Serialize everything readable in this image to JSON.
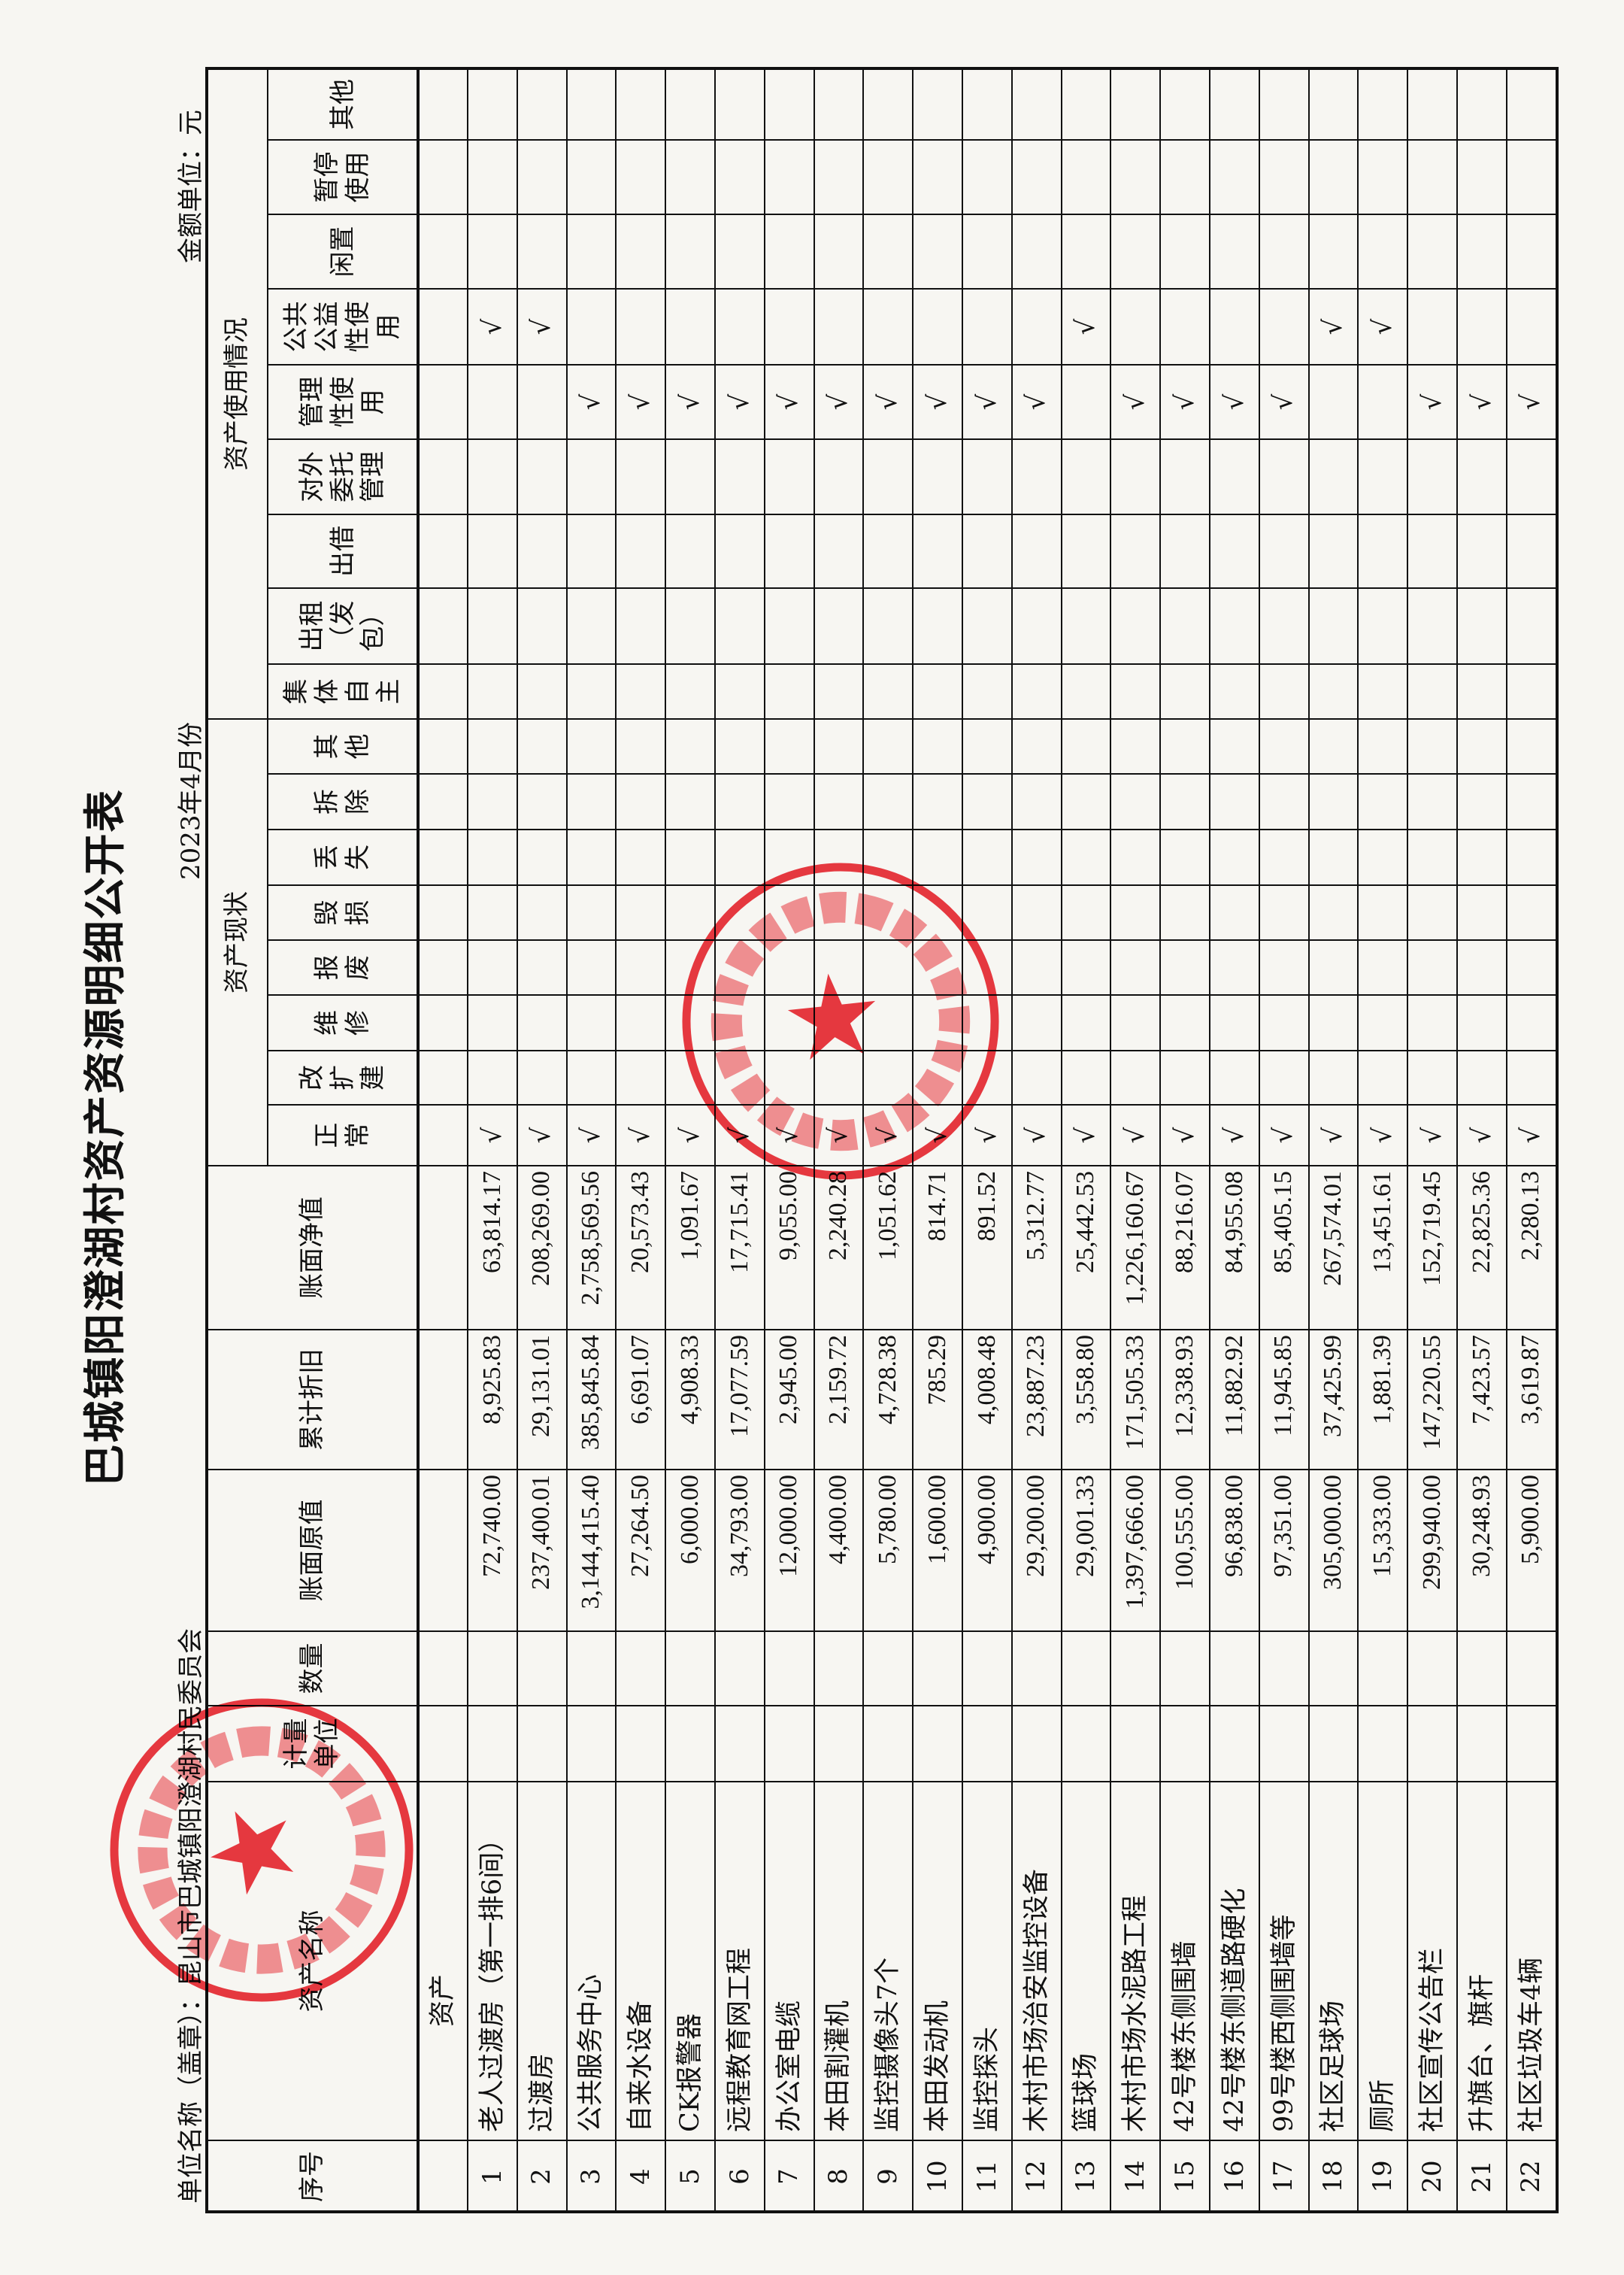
{
  "title": "巴城镇阳澄湖村资产资源明细公开表",
  "period": "2023年4月份",
  "unit_name": "单位名称（盖章）：昆山市巴城镇阳澄湖村民委员会",
  "currency_unit": "金额单位：元",
  "headers": {
    "seq": "序号",
    "name": "资产名称",
    "unit": "计量单位",
    "qty": "数量",
    "original": "账面原值",
    "depreciation": "累计折旧",
    "net": "账面净值",
    "status_group": "资产现状",
    "status": [
      "正常",
      "改扩建",
      "维修",
      "报废",
      "毁损",
      "丢失",
      "拆除",
      "其他"
    ],
    "usage_group": "资产使用情况",
    "usage": [
      "集体自主",
      "出租（发包）",
      "出借",
      "对外委托管理",
      "管理性使用",
      "公共公益性使用",
      "闲置",
      "暂停使用",
      "其他"
    ]
  },
  "category_row": {
    "name": "资产"
  },
  "check_mark": "√",
  "rows": [
    {
      "seq": "1",
      "name": "老人过渡房（第一排6间）",
      "original": "72,740.00",
      "depreciation": "8,925.83",
      "net": "63,814.17",
      "status": "正常",
      "usage": "公共公益性使用"
    },
    {
      "seq": "2",
      "name": "过渡房",
      "original": "237,400.01",
      "depreciation": "29,131.01",
      "net": "208,269.00",
      "status": "正常",
      "usage": "公共公益性使用"
    },
    {
      "seq": "3",
      "name": "公共服务中心",
      "original": "3,144,415.40",
      "depreciation": "385,845.84",
      "net": "2,758,569.56",
      "status": "正常",
      "usage": "管理性使用"
    },
    {
      "seq": "4",
      "name": "自来水设备",
      "original": "27,264.50",
      "depreciation": "6,691.07",
      "net": "20,573.43",
      "status": "正常",
      "usage": "管理性使用"
    },
    {
      "seq": "5",
      "name": "CK报警器",
      "original": "6,000.00",
      "depreciation": "4,908.33",
      "net": "1,091.67",
      "status": "正常",
      "usage": "管理性使用"
    },
    {
      "seq": "6",
      "name": "远程教育网工程",
      "original": "34,793.00",
      "depreciation": "17,077.59",
      "net": "17,715.41",
      "status": "正常",
      "usage": "管理性使用"
    },
    {
      "seq": "7",
      "name": "办公室电缆",
      "original": "12,000.00",
      "depreciation": "2,945.00",
      "net": "9,055.00",
      "status": "正常",
      "usage": "管理性使用"
    },
    {
      "seq": "8",
      "name": "本田割灌机",
      "original": "4,400.00",
      "depreciation": "2,159.72",
      "net": "2,240.28",
      "status": "正常",
      "usage": "管理性使用"
    },
    {
      "seq": "9",
      "name": "监控摄像头7个",
      "original": "5,780.00",
      "depreciation": "4,728.38",
      "net": "1,051.62",
      "status": "正常",
      "usage": "管理性使用"
    },
    {
      "seq": "10",
      "name": "本田发动机",
      "original": "1,600.00",
      "depreciation": "785.29",
      "net": "814.71",
      "status": "正常",
      "usage": "管理性使用"
    },
    {
      "seq": "11",
      "name": "监控探头",
      "original": "4,900.00",
      "depreciation": "4,008.48",
      "net": "891.52",
      "status": "正常",
      "usage": "管理性使用"
    },
    {
      "seq": "12",
      "name": "木村市场治安监控设备",
      "original": "29,200.00",
      "depreciation": "23,887.23",
      "net": "5,312.77",
      "status": "正常",
      "usage": "管理性使用"
    },
    {
      "seq": "13",
      "name": "篮球场",
      "original": "29,001.33",
      "depreciation": "3,558.80",
      "net": "25,442.53",
      "status": "正常",
      "usage": "公共公益性使用"
    },
    {
      "seq": "14",
      "name": "木村市场水泥路工程",
      "original": "1,397,666.00",
      "depreciation": "171,505.33",
      "net": "1,226,160.67",
      "status": "正常",
      "usage": "管理性使用"
    },
    {
      "seq": "15",
      "name": "42号楼东侧围墙",
      "original": "100,555.00",
      "depreciation": "12,338.93",
      "net": "88,216.07",
      "status": "正常",
      "usage": "管理性使用"
    },
    {
      "seq": "16",
      "name": "42号楼东侧道路硬化",
      "original": "96,838.00",
      "depreciation": "11,882.92",
      "net": "84,955.08",
      "status": "正常",
      "usage": "管理性使用"
    },
    {
      "seq": "17",
      "name": "99号楼西侧围墙等",
      "original": "97,351.00",
      "depreciation": "11,945.85",
      "net": "85,405.15",
      "status": "正常",
      "usage": "管理性使用"
    },
    {
      "seq": "18",
      "name": "社区足球场",
      "original": "305,000.00",
      "depreciation": "37,425.99",
      "net": "267,574.01",
      "status": "正常",
      "usage": "公共公益性使用"
    },
    {
      "seq": "19",
      "name": "厕所",
      "original": "15,333.00",
      "depreciation": "1,881.39",
      "net": "13,451.61",
      "status": "正常",
      "usage": "公共公益性使用"
    },
    {
      "seq": "20",
      "name": "社区宣传公告栏",
      "original": "299,940.00",
      "depreciation": "147,220.55",
      "net": "152,719.45",
      "status": "正常",
      "usage": "管理性使用"
    },
    {
      "seq": "21",
      "name": "升旗台、旗杆",
      "original": "30,248.93",
      "depreciation": "7,423.57",
      "net": "22,825.36",
      "status": "正常",
      "usage": "管理性使用"
    },
    {
      "seq": "22",
      "name": "社区垃圾车4辆",
      "original": "5,900.00",
      "depreciation": "3,619.87",
      "net": "2,280.13",
      "status": "正常",
      "usage": "管理性使用"
    }
  ],
  "stamps": [
    {
      "text": "昆山市巴城镇阳澄湖村民委员会",
      "color": "#e3232b"
    },
    {
      "text": "巴城镇阳澄湖村务监督委员会",
      "number": "3205830429388",
      "color": "#e3232b"
    }
  ]
}
